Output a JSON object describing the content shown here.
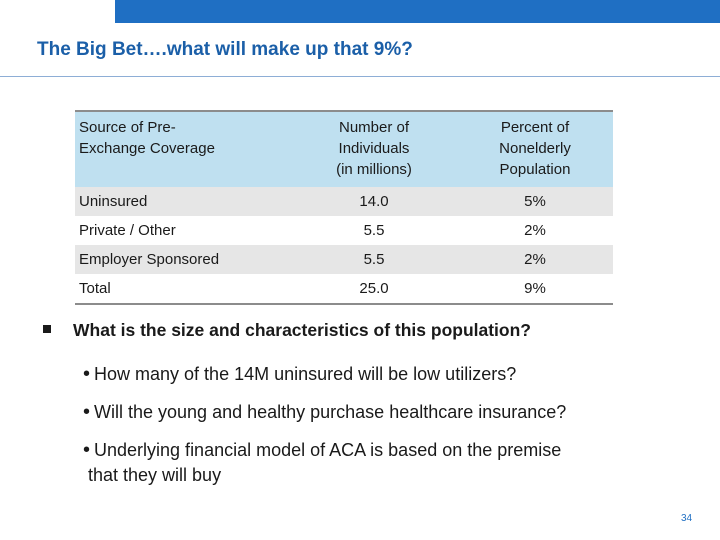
{
  "slide": {
    "title": "The Big Bet….what will make up that 9%?",
    "page_number": "34"
  },
  "table": {
    "headers": {
      "source_line1": "Source of Pre-",
      "source_line2": "Exchange Coverage",
      "number_line1": "Number of",
      "number_line2": "Individuals",
      "number_line3": "(in millions)",
      "percent_line1": "Percent of",
      "percent_line2": "Nonelderly",
      "percent_line3": "Population"
    },
    "rows": [
      {
        "source": "Uninsured",
        "number": "14.0",
        "percent": "5%"
      },
      {
        "source": "Private / Other",
        "number": "5.5",
        "percent": "2%"
      },
      {
        "source": "Employer Sponsored",
        "number": "5.5",
        "percent": "2%"
      },
      {
        "source": "Total",
        "number": "25.0",
        "percent": "9%"
      }
    ]
  },
  "question": "What is the size and characteristics of this population?",
  "bullets": [
    {
      "line1": "How many of the 14M uninsured will be low utilizers?"
    },
    {
      "line1": "Will the young and healthy purchase healthcare insurance?"
    },
    {
      "line1": "Underlying financial model of ACA is based on the premise",
      "line2": "that they will buy"
    }
  ],
  "colors": {
    "title": "#1b5fa8",
    "top_bar": "#1f6fc3",
    "header_fill": "#bfe0f0",
    "row_shade": "#e6e6e6"
  }
}
